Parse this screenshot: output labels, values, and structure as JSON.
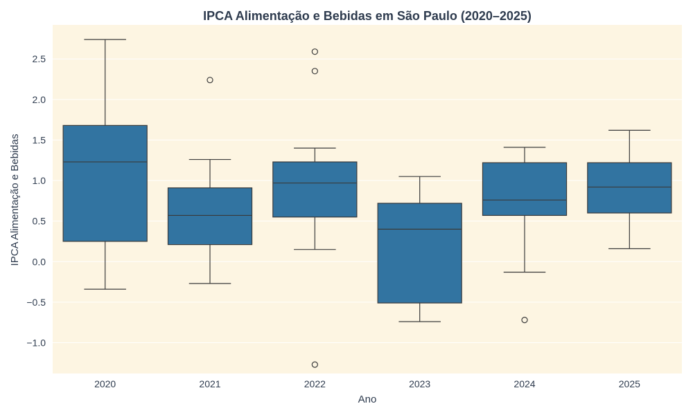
{
  "colors": {
    "background": "#fdf5e2",
    "grid": "#ffffff",
    "box_fill": "#3274a1",
    "line": "#3a3a3a",
    "text": "#2e3b4e"
  },
  "chart_data": {
    "type": "box",
    "title": "IPCA Alimentação e Bebidas em São Paulo (2020–2025)",
    "xlabel": "Ano",
    "ylabel": "IPCA Alimentação e Bebidas",
    "ylim": [
      -1.38,
      2.92
    ],
    "yticks": [
      -1.0,
      -0.5,
      0.0,
      0.5,
      1.0,
      1.5,
      2.0,
      2.5
    ],
    "ytick_labels": [
      "−1.0",
      "−0.5",
      "0.0",
      "0.5",
      "1.0",
      "1.5",
      "2.0",
      "2.5"
    ],
    "grid": true,
    "categories": [
      "2020",
      "2021",
      "2022",
      "2023",
      "2024",
      "2025"
    ],
    "boxes": [
      {
        "category": "2020",
        "whisker_low": -0.34,
        "q1": 0.25,
        "median": 1.23,
        "q3": 1.68,
        "whisker_high": 2.74,
        "outliers": []
      },
      {
        "category": "2021",
        "whisker_low": -0.27,
        "q1": 0.21,
        "median": 0.57,
        "q3": 0.91,
        "whisker_high": 1.26,
        "outliers": [
          2.24
        ]
      },
      {
        "category": "2022",
        "whisker_low": 0.15,
        "q1": 0.55,
        "median": 0.97,
        "q3": 1.23,
        "whisker_high": 1.4,
        "outliers": [
          2.59,
          2.35,
          -1.27
        ]
      },
      {
        "category": "2023",
        "whisker_low": -0.74,
        "q1": -0.51,
        "median": 0.4,
        "q3": 0.72,
        "whisker_high": 1.05,
        "outliers": []
      },
      {
        "category": "2024",
        "whisker_low": -0.13,
        "q1": 0.57,
        "median": 0.76,
        "q3": 1.22,
        "whisker_high": 1.41,
        "outliers": [
          -0.72
        ]
      },
      {
        "category": "2025",
        "whisker_low": 0.16,
        "q1": 0.6,
        "median": 0.92,
        "q3": 1.22,
        "whisker_high": 1.62,
        "outliers": []
      }
    ]
  }
}
